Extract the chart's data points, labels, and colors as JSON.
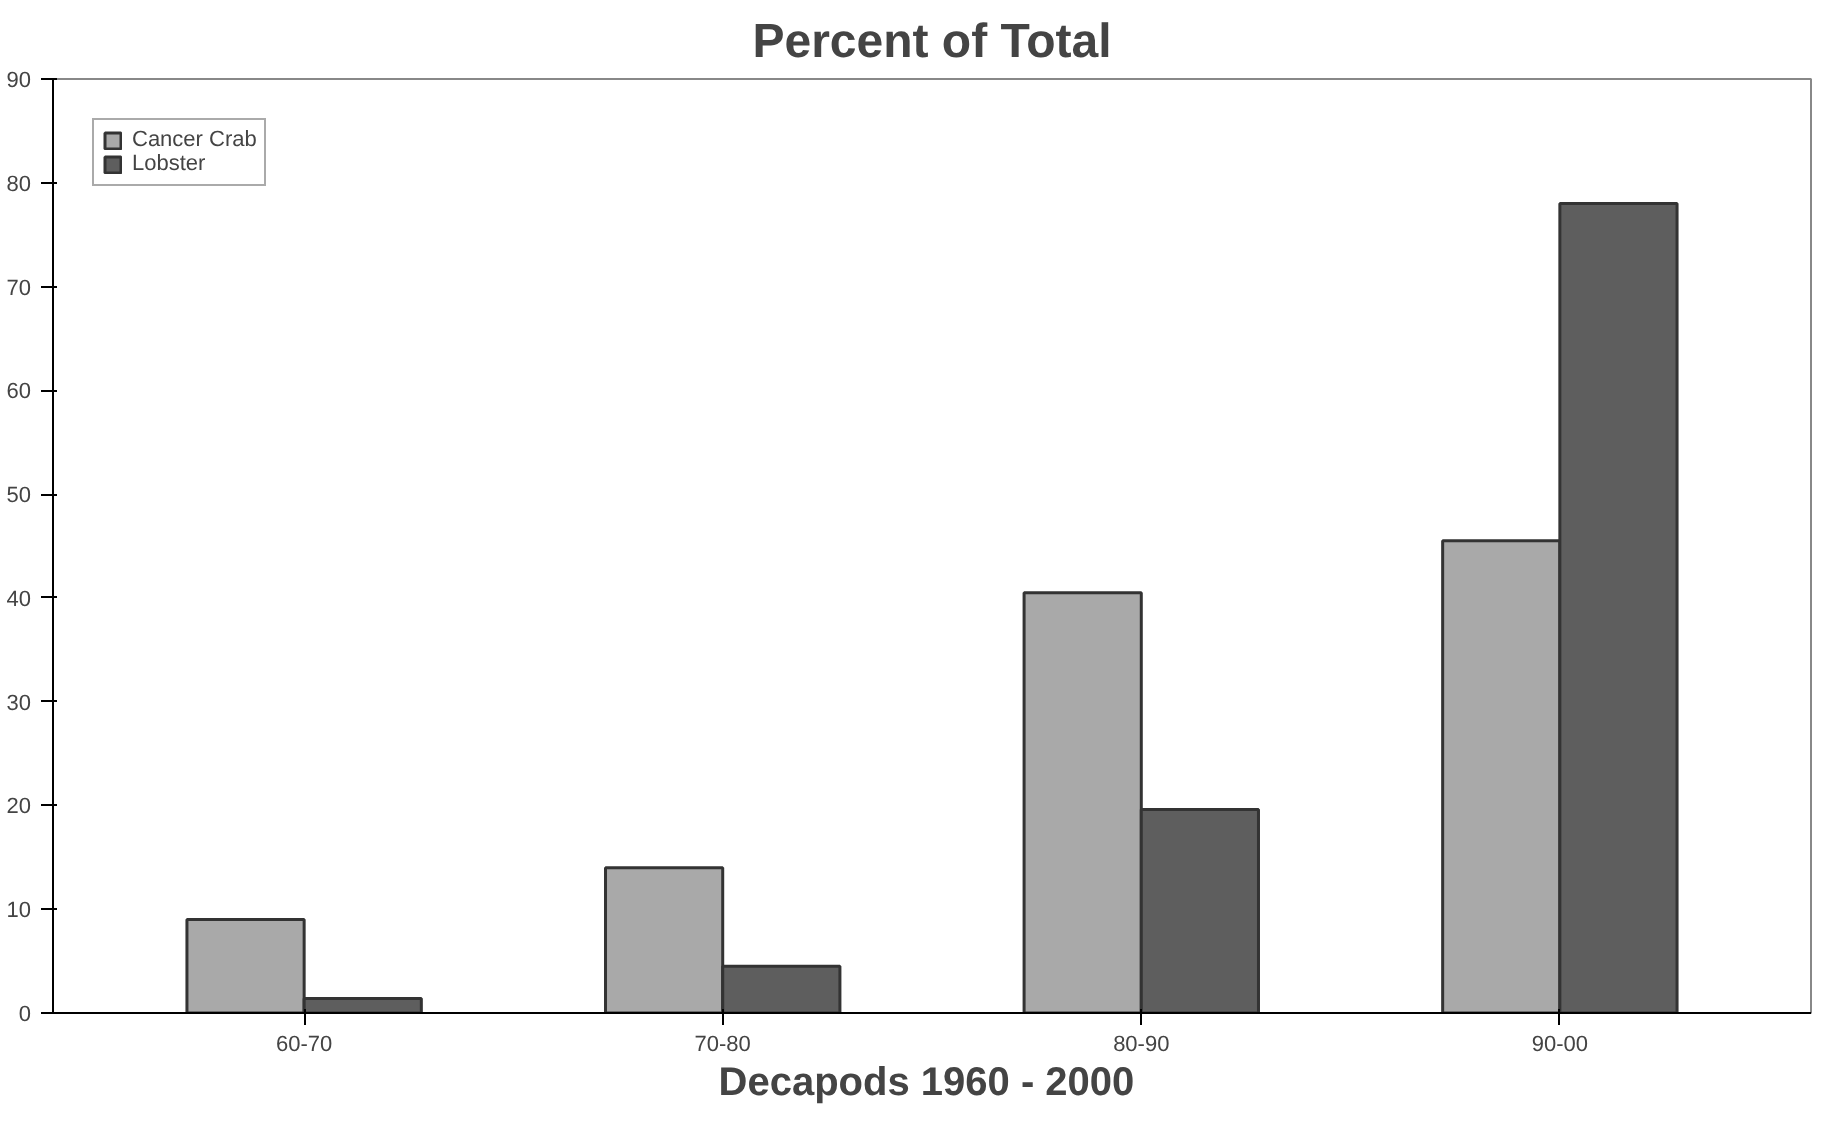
{
  "chart_data": {
    "type": "bar",
    "title": "Percent of Total",
    "xlabel": "Decapods  1960 - 2000",
    "categories": [
      "60-70",
      "70-80",
      "80-90",
      "90-00"
    ],
    "series": [
      {
        "name": "Cancer Crab",
        "color": "#a9a9a9",
        "values": [
          9,
          14,
          40.5,
          45.5
        ]
      },
      {
        "name": "Lobster",
        "color": "#5e5e5e",
        "values": [
          1.4,
          4.5,
          19.6,
          78
        ]
      }
    ],
    "ylim": [
      0,
      90
    ],
    "yticks": [
      0,
      10,
      20,
      30,
      40,
      50,
      60,
      70,
      80,
      90
    ],
    "grid": false,
    "legend": "top left"
  }
}
